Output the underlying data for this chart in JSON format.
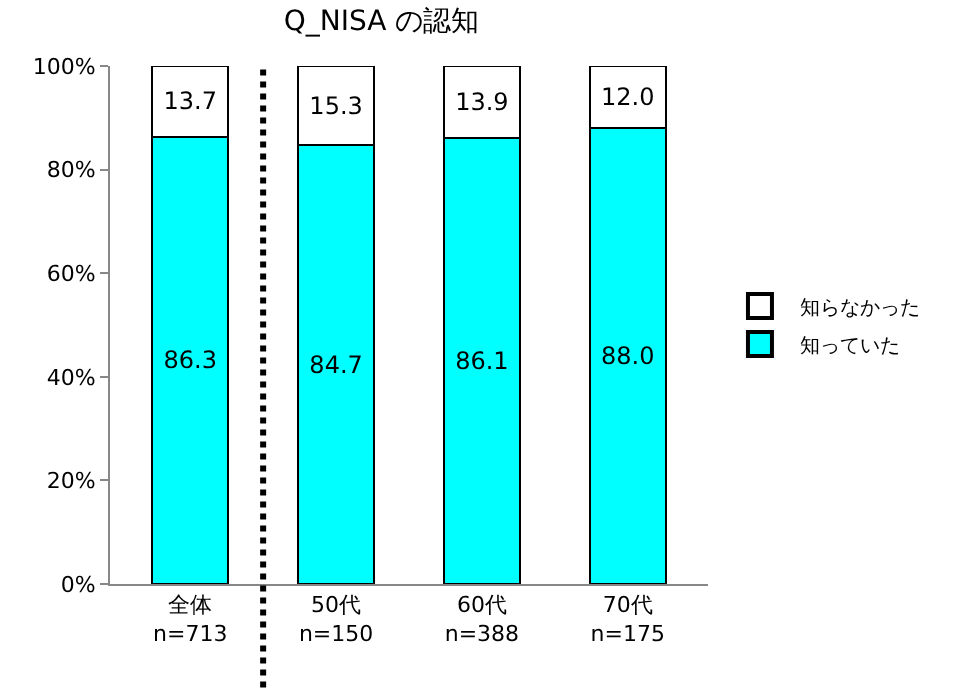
{
  "chart_data": {
    "type": "bar",
    "title": "Q_NISA の認知",
    "stacked": true,
    "categories": [
      "全体\nn=713",
      "50代\nn=150",
      "60代\nn=388",
      "70代\nn=175"
    ],
    "series": [
      {
        "name": "知っていた",
        "color": "#00ffff",
        "values": [
          86.3,
          84.7,
          86.1,
          88.0
        ],
        "value_labels": [
          "86.3",
          "84.7",
          "86.1",
          "88.0"
        ]
      },
      {
        "name": "知らなかった",
        "color": "#ffffff",
        "values": [
          13.7,
          15.3,
          13.9,
          12.0
        ],
        "value_labels": [
          "13.7",
          "15.3",
          "13.9",
          "12.0"
        ]
      }
    ],
    "ylim": [
      0,
      100
    ],
    "yticks": [
      {
        "value": 0,
        "label": "0%"
      },
      {
        "value": 20,
        "label": "20%"
      },
      {
        "value": 40,
        "label": "40%"
      },
      {
        "value": 60,
        "label": "60%"
      },
      {
        "value": 80,
        "label": "80%"
      },
      {
        "value": 100,
        "label": "100%"
      }
    ],
    "legend": "right"
  }
}
